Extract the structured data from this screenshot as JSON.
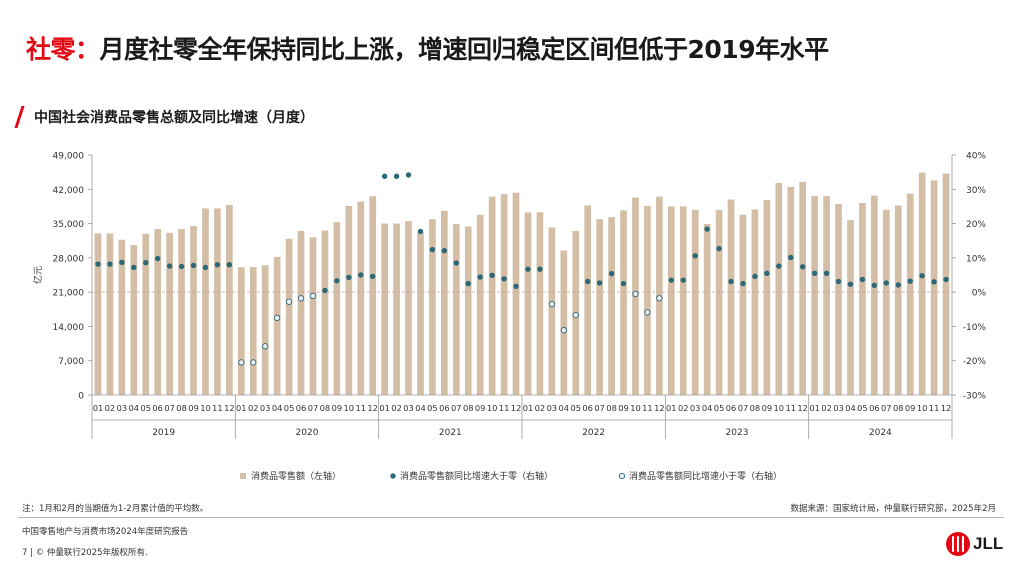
{
  "header": {
    "title_prefix": "社零：",
    "title_main": "月度社零全年保持同比上涨，增速回归稳定区间但低于2019年水平"
  },
  "subtitle": "中国社会消费品零售总额及同比增速（月度）",
  "chart_data": {
    "type": "bar",
    "title": "中国社会消费品零售总额及同比增速（月度）",
    "ylabel": "亿元",
    "ylim": [
      0,
      49000
    ],
    "y_ticks": [
      "0",
      "7,000",
      "14,000",
      "21,000",
      "28,000",
      "35,000",
      "42,000",
      "49,000"
    ],
    "y_tick_values": [
      0,
      7000,
      14000,
      21000,
      28000,
      35000,
      42000,
      49000
    ],
    "y2lim": [
      -30,
      40
    ],
    "y2_ticks": [
      "-30%",
      "-20%",
      "-10%",
      "0%",
      "10%",
      "20%",
      "30%",
      "40%"
    ],
    "y2_tick_values": [
      -30,
      -20,
      -10,
      0,
      10,
      20,
      30,
      40
    ],
    "month_labels": [
      "01",
      "02",
      "03",
      "04",
      "05",
      "06",
      "07",
      "08",
      "09",
      "10",
      "11",
      "12"
    ],
    "years": [
      "2019",
      "2020",
      "2021",
      "2022",
      "2023",
      "2024"
    ],
    "grid": false,
    "legend_position": "bottom",
    "series": [
      {
        "name": "消费品零售额（左轴）",
        "type": "bar",
        "axis": "left",
        "values": [
          33000,
          33000,
          31700,
          30600,
          32900,
          33900,
          33100,
          33900,
          34500,
          38100,
          38100,
          38800,
          26100,
          26100,
          26500,
          28200,
          31900,
          33500,
          32200,
          33600,
          35300,
          38600,
          39500,
          40600,
          35000,
          35000,
          35500,
          33200,
          35900,
          37600,
          34900,
          34400,
          36800,
          40500,
          41000,
          41300,
          37300,
          37300,
          34200,
          29500,
          33500,
          38700,
          35900,
          36300,
          37700,
          40300,
          38600,
          40500,
          38500,
          38500,
          37800,
          34900,
          37800,
          39900,
          36800,
          37900,
          39800,
          43300,
          42500,
          43500,
          40600,
          40600,
          39000,
          35700,
          39200,
          40700,
          37800,
          38700,
          41100,
          45400,
          43800,
          45200
        ]
      },
      {
        "name": "消费品零售额同比增速（右轴）",
        "type": "scatter",
        "axis": "right",
        "values": [
          8.2,
          8.2,
          8.7,
          7.2,
          8.6,
          9.8,
          7.6,
          7.5,
          7.8,
          7.2,
          8.0,
          8.0,
          -20.5,
          -20.5,
          -15.8,
          -7.5,
          -2.8,
          -1.8,
          -1.1,
          0.5,
          3.3,
          4.3,
          5.0,
          4.6,
          33.8,
          33.8,
          34.2,
          17.7,
          12.4,
          12.1,
          8.5,
          2.5,
          4.4,
          4.9,
          3.9,
          1.7,
          6.7,
          6.7,
          -3.5,
          -11.1,
          -6.7,
          3.1,
          2.7,
          5.4,
          2.5,
          -0.5,
          -5.9,
          -1.8,
          3.5,
          3.5,
          10.6,
          18.4,
          12.7,
          3.1,
          2.5,
          4.6,
          5.5,
          7.6,
          10.1,
          7.4,
          5.5,
          5.5,
          3.1,
          2.3,
          3.7,
          2.0,
          2.7,
          2.1,
          3.2,
          4.8,
          3.0,
          3.7
        ]
      }
    ]
  },
  "legend": {
    "bar": "消费品零售额（左轴）",
    "pos": "消费品零售额同比增速大于零（右轴）",
    "neg": "消费品零售额同比增速小于零（右轴）"
  },
  "colors": {
    "bar": "#d4bfa6",
    "dot_positive": "#2b6878",
    "dot_negative_fill": "#e9eef0",
    "dot_negative_stroke": "#2b6878",
    "accent": "#e30613",
    "zero_line": "#c9a49a"
  },
  "footer": {
    "note": "注：1月和2月的当期值为1-2月累计值的平均数。",
    "source": "数据来源：国家统计局，仲量联行研究部，2025年2月",
    "report": "中国零售地产与消费市场2024年度研究报告",
    "copyright": "7 | © 仲量联行2025年版权所有."
  },
  "logo": {
    "text": "JLL",
    "icon": "jll-logo-icon"
  }
}
